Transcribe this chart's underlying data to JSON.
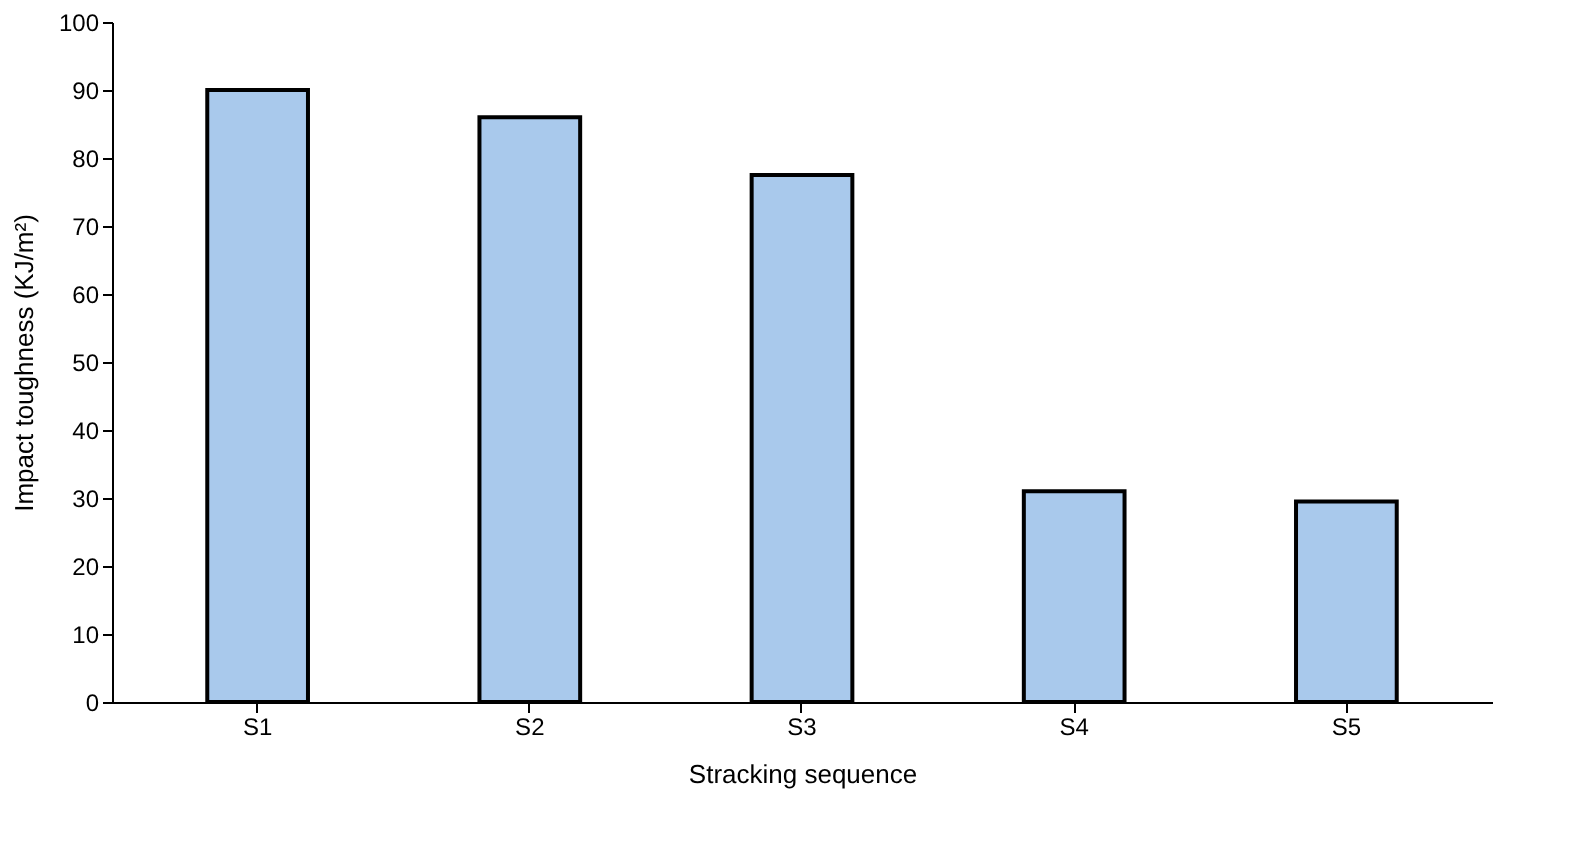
{
  "chart_data": {
    "type": "bar",
    "xlabel": "Stracking sequence",
    "ylabel": "Impact toughness (KJ/m²)",
    "categories": [
      "S1",
      "S2",
      "S3",
      "S4",
      "S5"
    ],
    "values": [
      90,
      86,
      77.5,
      31,
      29.5
    ],
    "color": "#a9c9ec",
    "ylim": [
      0,
      100
    ],
    "yticks": [
      0,
      10,
      20,
      30,
      40,
      50,
      60,
      70,
      80,
      90,
      100
    ],
    "grid": false
  }
}
